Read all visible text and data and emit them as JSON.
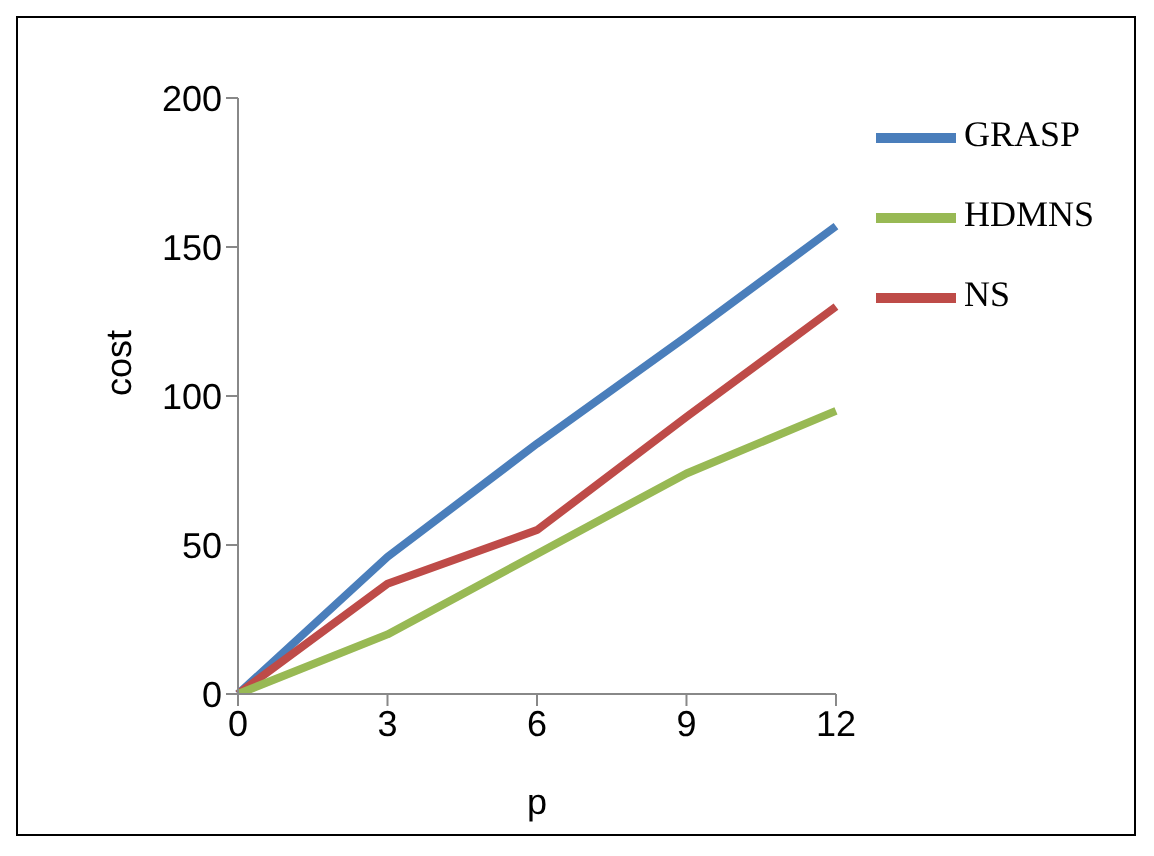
{
  "chart_data": {
    "type": "line",
    "xlabel": "p",
    "ylabel": "cost",
    "categories": [
      "0",
      "3",
      "6",
      "9",
      "12"
    ],
    "series": [
      {
        "name": "GRASP",
        "color": "#4a7ebb",
        "values": [
          0,
          46,
          84,
          120,
          157
        ]
      },
      {
        "name": "NS",
        "color": "#be4b48",
        "values": [
          0,
          37,
          55,
          93,
          130
        ]
      },
      {
        "name": "HDMNS",
        "color": "#98b954",
        "values": [
          0,
          20,
          47,
          74,
          95
        ]
      }
    ],
    "ylim": [
      0,
      200
    ],
    "yticks": [
      0,
      50,
      100,
      150,
      200
    ],
    "grid": false,
    "legend": "right",
    "marker": "none",
    "line_style": "solid"
  }
}
